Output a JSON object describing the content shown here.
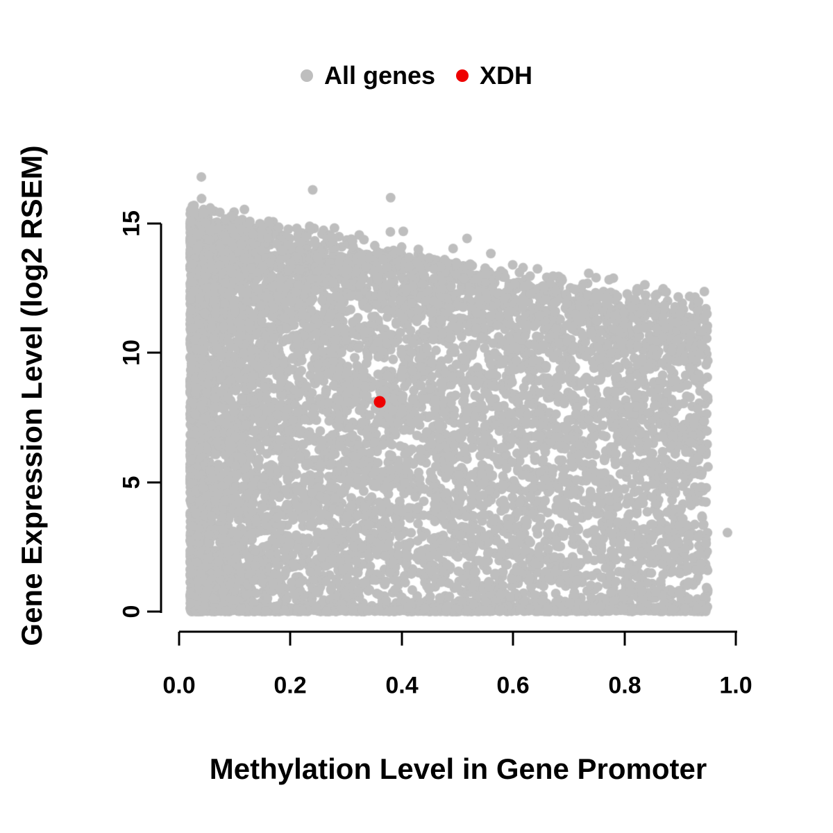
{
  "chart_data": {
    "type": "scatter",
    "title": "",
    "xlabel": "Methylation Level in Gene Promoter",
    "ylabel": "Gene Expression Level (log2 RSEM)",
    "xlim": [
      0.0,
      1.0
    ],
    "ylim": [
      0,
      15
    ],
    "x_ticks": [
      "0.0",
      "0.2",
      "0.4",
      "0.6",
      "0.8",
      "1.0"
    ],
    "y_ticks": [
      "0",
      "5",
      "10",
      "15"
    ],
    "grid": false,
    "legend_position": "top-center",
    "legend": [
      {
        "label": "All genes",
        "color": "#bebebe"
      },
      {
        "label": "XDH",
        "color": "#ee0000"
      }
    ],
    "series": [
      {
        "name": "All genes",
        "kind": "dense-cloud",
        "color": "#bebebe",
        "n": 9000,
        "x_range": [
          0.02,
          0.95
        ],
        "envelope": {
          "y_at_x0": 15.3,
          "slope": -3.8,
          "noise_sd": 0.35
        },
        "y_min": 0,
        "outliers": [
          {
            "x": 0.985,
            "y": 3.05
          },
          {
            "x": 0.04,
            "y": 16.8
          },
          {
            "x": 0.24,
            "y": 16.3
          },
          {
            "x": 0.38,
            "y": 16.0
          }
        ],
        "description": "Dense negative-correlation wedge: expression spans 0 to ~15 at low methylation; upper bound declines to ~12 near methylation 0.95; dense baseline of points at y=0 across full x range."
      },
      {
        "name": "XDH",
        "kind": "points",
        "color": "#ee0000",
        "points": [
          {
            "x": 0.36,
            "y": 8.1
          }
        ]
      }
    ]
  }
}
